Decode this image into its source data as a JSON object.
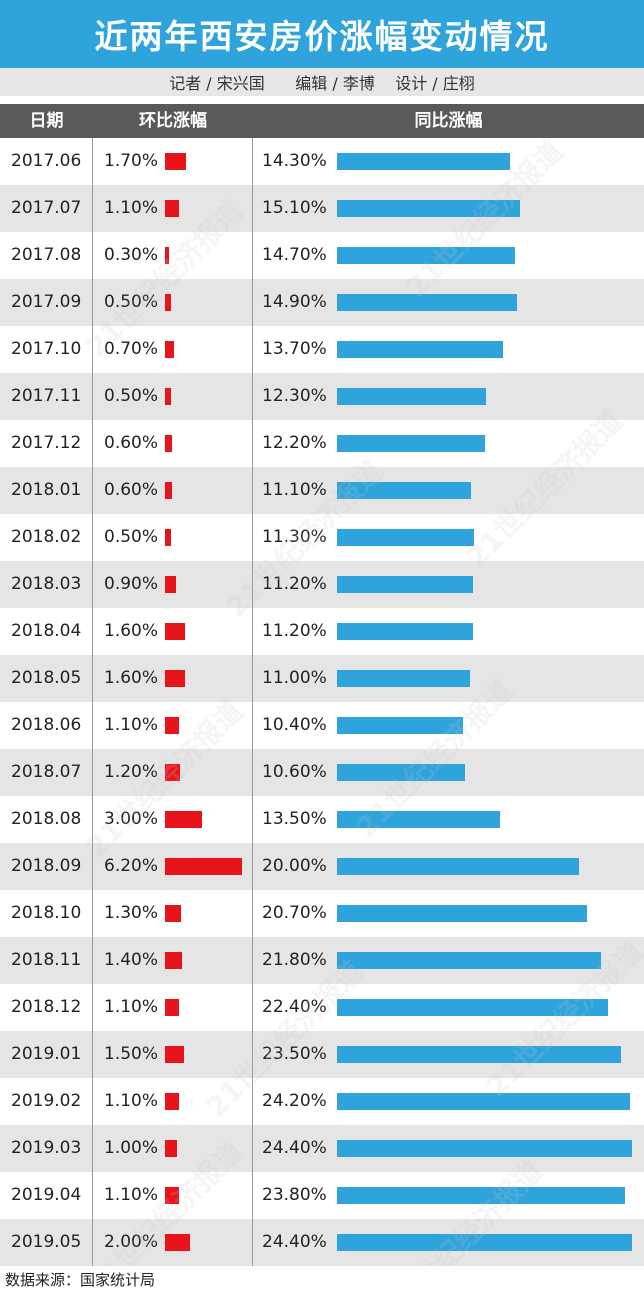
{
  "title": "近两年西安房价涨幅变动情况",
  "credits": {
    "reporter": "记者 / 宋兴国",
    "editor": "编辑 / 李博",
    "design": "设计 / 庄栩"
  },
  "source": "数据来源：国家统计局",
  "watermark": "21世纪经济报道",
  "colors": {
    "title_bg": "#2fa4dc",
    "mom_bar": "#e8141c",
    "yoy_bar": "#2fa4dc",
    "header_bg": "#595959",
    "alt_row": "#e5e5e5"
  },
  "chart_data": {
    "type": "table",
    "columns": [
      "日期",
      "环比涨幅",
      "同比涨幅"
    ],
    "rows": [
      {
        "date": "2017.06",
        "mom": 1.7,
        "yoy": 14.3
      },
      {
        "date": "2017.07",
        "mom": 1.1,
        "yoy": 15.1
      },
      {
        "date": "2017.08",
        "mom": 0.3,
        "yoy": 14.7
      },
      {
        "date": "2017.09",
        "mom": 0.5,
        "yoy": 14.9
      },
      {
        "date": "2017.10",
        "mom": 0.7,
        "yoy": 13.7
      },
      {
        "date": "2017.11",
        "mom": 0.5,
        "yoy": 12.3
      },
      {
        "date": "2017.12",
        "mom": 0.6,
        "yoy": 12.2
      },
      {
        "date": "2018.01",
        "mom": 0.6,
        "yoy": 11.1
      },
      {
        "date": "2018.02",
        "mom": 0.5,
        "yoy": 11.3
      },
      {
        "date": "2018.03",
        "mom": 0.9,
        "yoy": 11.2
      },
      {
        "date": "2018.04",
        "mom": 1.6,
        "yoy": 11.2
      },
      {
        "date": "2018.05",
        "mom": 1.6,
        "yoy": 11.0
      },
      {
        "date": "2018.06",
        "mom": 1.1,
        "yoy": 10.4
      },
      {
        "date": "2018.07",
        "mom": 1.2,
        "yoy": 10.6
      },
      {
        "date": "2018.08",
        "mom": 3.0,
        "yoy": 13.5
      },
      {
        "date": "2018.09",
        "mom": 6.2,
        "yoy": 20.0
      },
      {
        "date": "2018.10",
        "mom": 1.3,
        "yoy": 20.7
      },
      {
        "date": "2018.11",
        "mom": 1.4,
        "yoy": 21.8
      },
      {
        "date": "2018.12",
        "mom": 1.1,
        "yoy": 22.4
      },
      {
        "date": "2019.01",
        "mom": 1.5,
        "yoy": 23.5
      },
      {
        "date": "2019.02",
        "mom": 1.1,
        "yoy": 24.2
      },
      {
        "date": "2019.03",
        "mom": 1.0,
        "yoy": 24.4
      },
      {
        "date": "2019.04",
        "mom": 1.1,
        "yoy": 23.8
      },
      {
        "date": "2019.05",
        "mom": 2.0,
        "yoy": 24.4
      }
    ],
    "unit": "%"
  }
}
